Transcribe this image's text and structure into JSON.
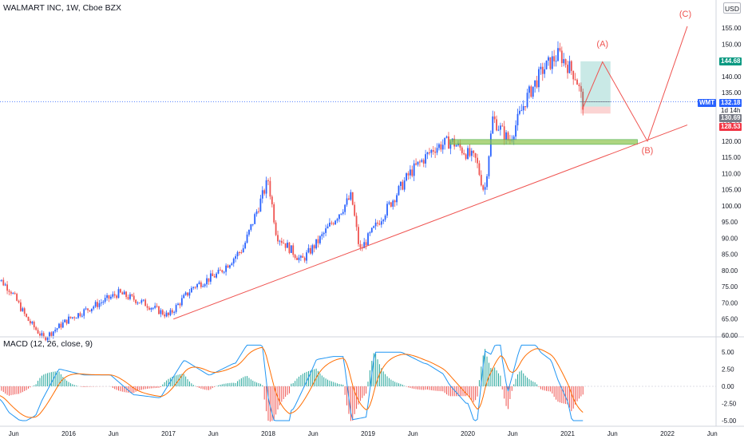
{
  "header": {
    "title": "WALMART INC, 1W, Cboe BZX",
    "currency": "USD"
  },
  "macd": {
    "title": "MACD (12, 26, close, 9)"
  },
  "price_axis": {
    "ticks": [
      "155.00",
      "150.00",
      "145.00",
      "140.00",
      "135.00",
      "130.00",
      "125.00",
      "120.00",
      "115.00",
      "110.00",
      "105.00",
      "100.00",
      "95.00",
      "90.00",
      "85.00",
      "80.00",
      "75.00",
      "70.00",
      "65.00",
      "60.00"
    ]
  },
  "macd_axis": {
    "ticks": [
      "5.00",
      "2.50",
      "0.00",
      "-2.50",
      "-5.00"
    ]
  },
  "time_axis": {
    "ticks": [
      "Jun",
      "2016",
      "Jun",
      "2017",
      "Jun",
      "2018",
      "Jun",
      "2019",
      "Jun",
      "2020",
      "Jun",
      "2021",
      "Jun",
      "2022",
      "Jun"
    ]
  },
  "tags": {
    "target": "144.68",
    "symbol": "WMT",
    "last_price": "132.18",
    "countdown": "1d 14h",
    "entry": "130.69",
    "stop": "128.53"
  },
  "waves": {
    "a": "(A)",
    "b": "(B)",
    "c": "(C)"
  },
  "colors": {
    "up_candle": "#2962ff",
    "down_candle": "#ef5350",
    "trendline": "#ef5350",
    "support_zone": "#8bc34a",
    "macd_line": "#2196f3",
    "signal_line": "#ff6d00",
    "hist_up": "#26a69a",
    "hist_down": "#ef5350",
    "target_tag": "#089981",
    "symbol_tag": "#2962ff",
    "entry_tag": "#787b86",
    "stop_tag": "#f23645"
  },
  "chart_data": {
    "type": "candlestick",
    "symbol": "WMT",
    "interval": "1W",
    "price_range": [
      60,
      157
    ],
    "close_series": [
      {
        "date": "2015-04",
        "close": 79
      },
      {
        "date": "2015-06",
        "close": 74
      },
      {
        "date": "2015-08",
        "close": 65
      },
      {
        "date": "2015-10",
        "close": 59
      },
      {
        "date": "2016-01",
        "close": 65
      },
      {
        "date": "2016-04",
        "close": 69
      },
      {
        "date": "2016-07",
        "close": 73
      },
      {
        "date": "2016-10",
        "close": 70
      },
      {
        "date": "2017-01",
        "close": 66
      },
      {
        "date": "2017-04",
        "close": 75
      },
      {
        "date": "2017-07",
        "close": 79
      },
      {
        "date": "2017-10",
        "close": 87
      },
      {
        "date": "2018-01",
        "close": 108
      },
      {
        "date": "2018-02",
        "close": 91
      },
      {
        "date": "2018-05",
        "close": 83
      },
      {
        "date": "2018-07",
        "close": 89
      },
      {
        "date": "2018-09",
        "close": 96
      },
      {
        "date": "2018-11",
        "close": 103
      },
      {
        "date": "2018-12",
        "close": 86
      },
      {
        "date": "2019-03",
        "close": 98
      },
      {
        "date": "2019-06",
        "close": 110
      },
      {
        "date": "2019-09",
        "close": 118
      },
      {
        "date": "2019-11",
        "close": 120
      },
      {
        "date": "2020-02",
        "close": 114
      },
      {
        "date": "2020-03",
        "close": 104
      },
      {
        "date": "2020-04",
        "close": 127
      },
      {
        "date": "2020-06",
        "close": 120
      },
      {
        "date": "2020-08",
        "close": 133
      },
      {
        "date": "2020-10",
        "close": 142
      },
      {
        "date": "2020-12",
        "close": 147
      },
      {
        "date": "2021-02",
        "close": 140
      },
      {
        "date": "2021-03",
        "close": 130
      }
    ],
    "support_zone": [
      119,
      120.5
    ],
    "targets": {
      "A": 144.68,
      "entry": 130.69,
      "stop": 128.53,
      "last": 132.18
    },
    "macd": {
      "params": "12, 26, close, 9",
      "range": [
        -5.5,
        6.5
      ]
    }
  }
}
